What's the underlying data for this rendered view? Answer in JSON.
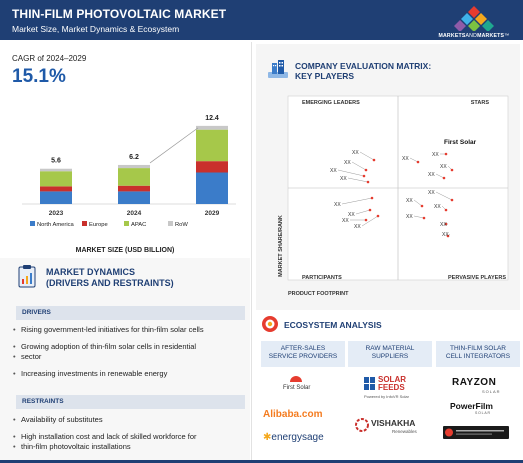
{
  "header": {
    "title": "THIN-FILM PHOTOVOLTAIC MARKET",
    "subtitle": "Market Size, Market Dynamics & Ecosystem",
    "logo_text_bold1": "MARKETS",
    "logo_text_mid": "AND",
    "logo_text_bold2": "MARKETS",
    "logo_tm": "™"
  },
  "cagr": {
    "label": "CAGR of 2024–2029",
    "value": "15.1%"
  },
  "chart_data": {
    "type": "bar",
    "stacked": true,
    "categories": [
      "2023",
      "2024",
      "2029"
    ],
    "totals": [
      5.6,
      6.2,
      12.4
    ],
    "series": [
      {
        "name": "North America",
        "color": "#3b7cc9",
        "values": [
          2.0,
          2.0,
          5.0
        ]
      },
      {
        "name": "Europe",
        "color": "#c9302c",
        "values": [
          0.8,
          0.9,
          1.8
        ]
      },
      {
        "name": "APAC",
        "color": "#a6c84a",
        "values": [
          2.4,
          2.8,
          5.0
        ]
      },
      {
        "name": "RoW",
        "color": "#c8c8c8",
        "values": [
          0.4,
          0.5,
          0.6
        ]
      }
    ],
    "xlabel": "MARKET SIZE (USD BILLION)",
    "legend_position": "bottom"
  },
  "matrix": {
    "title_line1": "COMPANY EVALUATION MATRIX:",
    "title_line2": "KEY PLAYERS",
    "quadrants": {
      "top_left": "EMERGING LEADERS",
      "top_right": "STARS",
      "bottom_left": "PARTICIPANTS",
      "bottom_right": "PERVASIVE PLAYERS"
    },
    "y_axis": "MARKET SHARE/RANK",
    "x_axis": "PRODUCT FOOTPRINT",
    "highlight": "First Solar",
    "placeholder": "XX"
  },
  "dynamics": {
    "title_line1": "MARKET DYNAMICS",
    "title_line2": "(DRIVERS AND RESTRAINTS)",
    "drivers_label": "DRIVERS",
    "drivers": [
      "Rising government-led initiatives for thin-film solar cells",
      "Growing adoption of thin-film solar cells in residential",
      "sector",
      "Increasing investments in renewable energy"
    ],
    "restraints_label": "RESTRAINTS",
    "restraints": [
      "Availability of substitutes",
      "High installation cost and lack of skilled workforce for",
      "thin-film photovoltaic installations"
    ]
  },
  "ecosystem": {
    "title": "ECOSYSTEM ANALYSIS",
    "columns": [
      {
        "line1": "AFTER-SALES",
        "line2": "SERVICE PROVIDERS"
      },
      {
        "line1": "RAW MATERIAL",
        "line2": "SUPPLIERS"
      },
      {
        "line1": "THIN-FILM SOLAR",
        "line2": "CELL INTEGRATORS"
      }
    ],
    "brands": {
      "first_solar": "First Solar",
      "alibaba": "Alibaba.com",
      "energysage": "energysage",
      "solar_feeds_1": "SOLAR",
      "solar_feeds_2": "FEEDS",
      "solar_feeds_sub": "Powered by InfoVR Solar",
      "vishakha": "VISHAKHA",
      "vishakha_sub": "Renewables",
      "rayzon": "RAYZON",
      "rayzon_sub": "SOLAR",
      "powerfilm": "PowerFilm",
      "powerfilm_sub": "SOLAR"
    }
  }
}
